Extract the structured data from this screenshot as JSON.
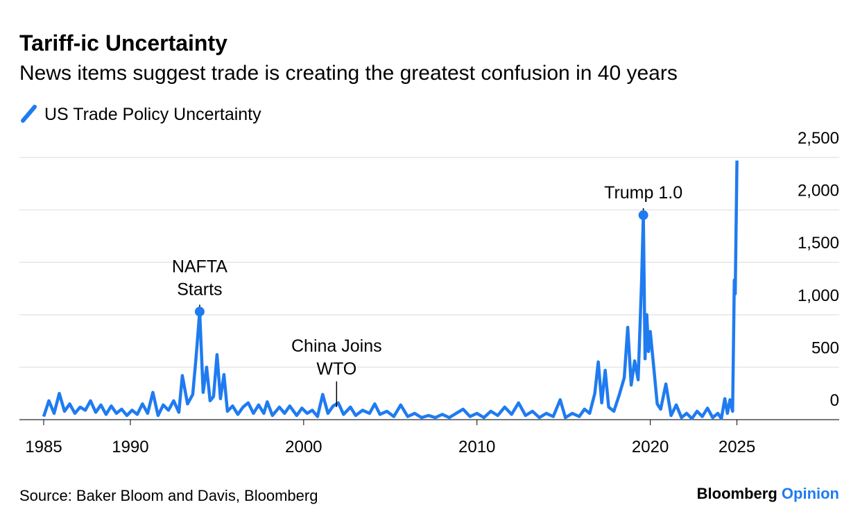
{
  "chart_data": {
    "type": "line",
    "title": "Tariff-ic Uncertainty",
    "subtitle": "News items suggest trade is creating the greatest confusion in 40 years",
    "source": "Source: Baker Bloom and Davis, Bloomberg",
    "brand": [
      "Bloomberg",
      "Opinion"
    ],
    "xlim": [
      1983.6,
      2030.9
    ],
    "xticks": [
      1985,
      1990,
      2000,
      2010,
      2020,
      2025
    ],
    "ylim": [
      0,
      2500
    ],
    "yticks": [
      0,
      500,
      {
        "value": 1000,
        "label": "1,000"
      },
      {
        "value": 1500,
        "label": "1,500"
      },
      {
        "value": 2000,
        "label": "2,000"
      },
      {
        "value": 2500,
        "label": "2,500"
      }
    ],
    "grid": true,
    "legend": "top-left",
    "series": [
      {
        "name": "US Trade Policy Uncertainty",
        "color": "#1f7bf0",
        "x": [
          1985.0,
          1985.3,
          1985.6,
          1985.9,
          1986.2,
          1986.5,
          1986.8,
          1987.1,
          1987.4,
          1987.7,
          1988.0,
          1988.3,
          1988.6,
          1988.9,
          1989.2,
          1989.5,
          1989.8,
          1990.1,
          1990.4,
          1990.7,
          1991.0,
          1991.3,
          1991.6,
          1991.9,
          1992.2,
          1992.5,
          1992.8,
          1993.0,
          1993.3,
          1993.6,
          1993.8,
          1994.0,
          1994.2,
          1994.4,
          1994.6,
          1994.8,
          1995.0,
          1995.2,
          1995.4,
          1995.6,
          1995.9,
          1996.2,
          1996.5,
          1996.8,
          1997.1,
          1997.4,
          1997.7,
          1997.9,
          1998.2,
          1998.6,
          1998.9,
          1999.2,
          1999.6,
          1999.9,
          2000.2,
          2000.5,
          2000.8,
          2001.1,
          2001.4,
          2001.7,
          2002.0,
          2002.3,
          2002.7,
          2003.0,
          2003.4,
          2003.8,
          2004.1,
          2004.4,
          2004.8,
          2005.2,
          2005.6,
          2006.0,
          2006.4,
          2006.8,
          2007.2,
          2007.6,
          2008.0,
          2008.4,
          2008.8,
          2009.2,
          2009.6,
          2010.0,
          2010.4,
          2010.8,
          2011.2,
          2011.6,
          2012.0,
          2012.4,
          2012.8,
          2013.2,
          2013.6,
          2014.0,
          2014.4,
          2014.8,
          2015.1,
          2015.5,
          2015.9,
          2016.2,
          2016.5,
          2016.8,
          2017.0,
          2017.2,
          2017.4,
          2017.6,
          2017.9,
          2018.2,
          2018.5,
          2018.7,
          2018.9,
          2019.1,
          2019.3,
          2019.5,
          2019.6,
          2019.7,
          2019.8,
          2019.9,
          2020.0,
          2020.2,
          2020.4,
          2020.6,
          2020.9,
          2021.2,
          2021.5,
          2021.8,
          2022.1,
          2022.4,
          2022.7,
          2023.0,
          2023.3,
          2023.6,
          2023.9,
          2024.1,
          2024.3,
          2024.45,
          2024.6,
          2024.75,
          2024.85,
          2024.9,
          2025.0
        ],
        "values": [
          30,
          180,
          60,
          250,
          80,
          150,
          60,
          120,
          90,
          180,
          70,
          140,
          50,
          130,
          60,
          100,
          40,
          90,
          50,
          150,
          60,
          260,
          40,
          140,
          90,
          180,
          70,
          420,
          150,
          240,
          610,
          1030,
          260,
          500,
          180,
          220,
          620,
          200,
          430,
          80,
          130,
          50,
          120,
          160,
          60,
          140,
          60,
          170,
          40,
          120,
          60,
          130,
          40,
          110,
          60,
          90,
          30,
          240,
          60,
          130,
          160,
          50,
          120,
          40,
          90,
          60,
          150,
          50,
          80,
          30,
          140,
          30,
          60,
          20,
          40,
          20,
          50,
          20,
          60,
          100,
          30,
          60,
          20,
          80,
          40,
          120,
          50,
          160,
          40,
          80,
          20,
          60,
          30,
          190,
          20,
          60,
          30,
          100,
          60,
          250,
          550,
          160,
          470,
          120,
          80,
          230,
          400,
          880,
          330,
          560,
          380,
          1320,
          1950,
          580,
          1000,
          650,
          840,
          500,
          150,
          100,
          340,
          40,
          140,
          20,
          60,
          10,
          80,
          30,
          110,
          20,
          60,
          10,
          200,
          60,
          190,
          80,
          1330,
          1200,
          2470
        ]
      }
    ],
    "annotations": [
      {
        "text": [
          "NAFTA",
          "Starts"
        ],
        "x": 1994.0,
        "y": 1030,
        "marker": "dot"
      },
      {
        "text": [
          "China Joins",
          "WTO"
        ],
        "x": 2001.9,
        "y": 120,
        "marker": "line"
      },
      {
        "text": [
          "Trump 1.0"
        ],
        "x": 2019.6,
        "y": 1950,
        "marker": "dot"
      }
    ]
  }
}
